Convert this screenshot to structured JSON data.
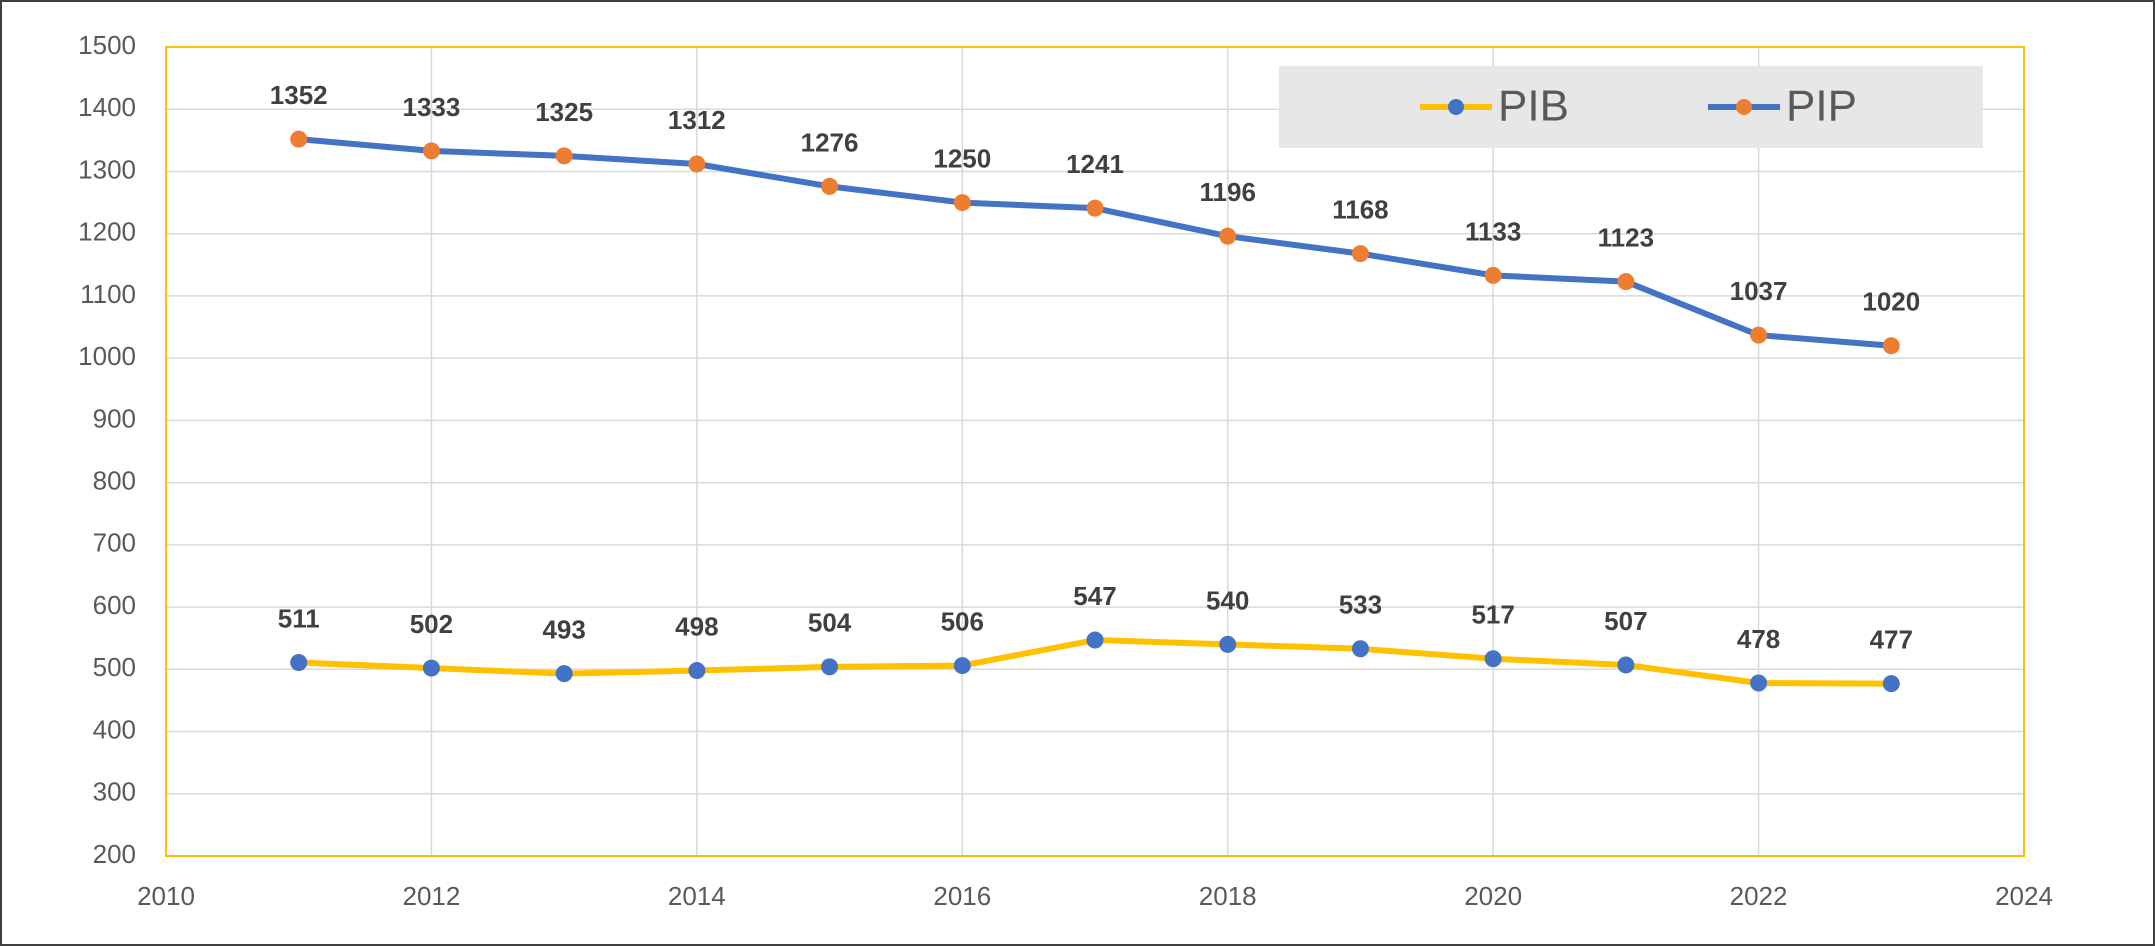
{
  "chart_data": {
    "type": "line",
    "x": [
      2011,
      2012,
      2013,
      2014,
      2015,
      2016,
      2017,
      2018,
      2019,
      2020,
      2021,
      2022,
      2023
    ],
    "series": [
      {
        "name": "PIB",
        "color": "#FFC000",
        "marker_color": "#4472C4",
        "values": [
          511,
          502,
          493,
          498,
          504,
          506,
          547,
          540,
          533,
          517,
          507,
          478,
          477
        ]
      },
      {
        "name": "PIP",
        "color": "#4472C4",
        "marker_color": "#ED7D31",
        "values": [
          1352,
          1333,
          1325,
          1312,
          1276,
          1250,
          1241,
          1196,
          1168,
          1133,
          1123,
          1037,
          1020
        ]
      }
    ],
    "xlim": [
      2010,
      2024
    ],
    "xticks": [
      2010,
      2012,
      2014,
      2016,
      2018,
      2020,
      2022,
      2024
    ],
    "ylim": [
      200,
      1500
    ],
    "yticks": [
      200,
      300,
      400,
      500,
      600,
      700,
      800,
      900,
      1000,
      1100,
      1200,
      1300,
      1400,
      1500
    ],
    "grid": true,
    "legend": "top-right"
  }
}
